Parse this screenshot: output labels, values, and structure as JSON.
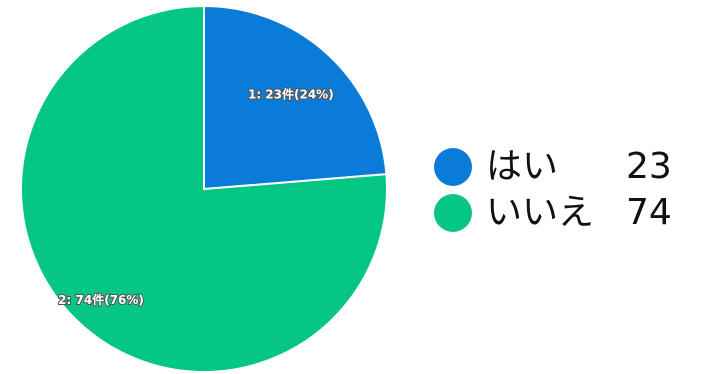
{
  "chart_data": {
    "type": "pie",
    "categories": [
      "はい",
      "いいえ"
    ],
    "values": [
      23,
      74
    ],
    "percentages": [
      24,
      76
    ],
    "colors": [
      "#0a7bd8",
      "#05c783"
    ],
    "slice_labels": [
      "1: 23件(24%)",
      "2: 74件(76%)"
    ],
    "legend": {
      "placement": "right",
      "items": [
        {
          "name": "はい",
          "count": "23"
        },
        {
          "name": "いいえ",
          "count": "74"
        }
      ]
    },
    "start_angle": "12 o'clock, clockwise"
  }
}
